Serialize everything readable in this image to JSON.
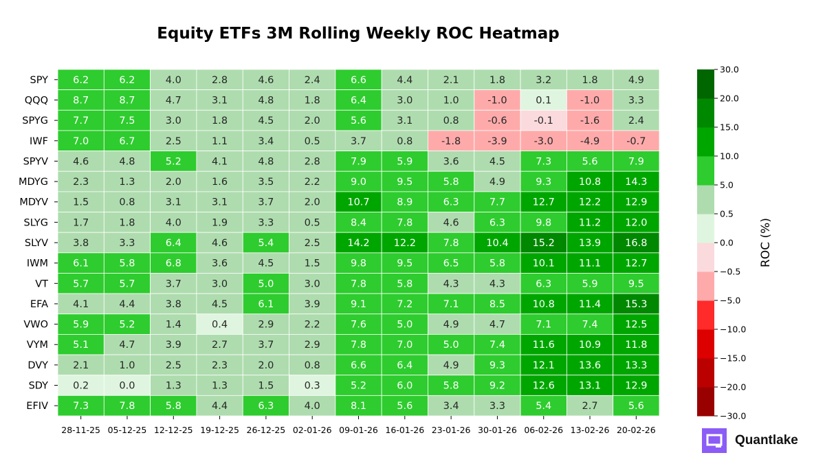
{
  "chart_data": {
    "type": "heatmap",
    "title": "Equity ETFs 3M Rolling Weekly ROC Heatmap",
    "rows": [
      "SPY",
      "QQQ",
      "SPYG",
      "IWF",
      "SPYV",
      "MDYG",
      "MDYV",
      "SLYG",
      "SLYV",
      "IWM",
      "VT",
      "EFA",
      "VWO",
      "VYM",
      "DVY",
      "SDY",
      "EFIV"
    ],
    "columns": [
      "28-11-25",
      "05-12-25",
      "12-12-25",
      "19-12-25",
      "26-12-25",
      "02-01-26",
      "09-01-26",
      "16-01-26",
      "23-01-26",
      "30-01-26",
      "06-02-26",
      "13-02-26",
      "20-02-26"
    ],
    "values": [
      [
        6.2,
        6.2,
        4.0,
        2.8,
        4.6,
        2.4,
        6.6,
        4.4,
        2.1,
        1.8,
        3.2,
        1.8,
        4.9
      ],
      [
        8.7,
        8.7,
        4.7,
        3.1,
        4.8,
        1.8,
        6.4,
        3.0,
        1.0,
        -1.0,
        0.1,
        -1.0,
        3.3
      ],
      [
        7.7,
        7.5,
        3.0,
        1.8,
        4.5,
        2.0,
        5.6,
        3.1,
        0.8,
        -0.6,
        -0.1,
        -1.6,
        2.4
      ],
      [
        7.0,
        6.7,
        2.5,
        1.1,
        3.4,
        0.5,
        3.7,
        0.8,
        -1.8,
        -3.9,
        -3.0,
        -4.9,
        -0.7
      ],
      [
        4.6,
        4.8,
        5.2,
        4.1,
        4.8,
        2.8,
        7.9,
        5.9,
        3.6,
        4.5,
        7.3,
        5.6,
        7.9
      ],
      [
        2.3,
        1.3,
        2.0,
        1.6,
        3.5,
        2.2,
        9.0,
        9.5,
        5.8,
        4.9,
        9.3,
        10.8,
        14.3
      ],
      [
        1.5,
        0.8,
        3.1,
        3.1,
        3.7,
        2.0,
        10.7,
        8.9,
        6.3,
        7.7,
        12.7,
        12.2,
        12.9
      ],
      [
        1.7,
        1.8,
        4.0,
        1.9,
        3.3,
        0.5,
        8.4,
        7.8,
        4.6,
        6.3,
        9.8,
        11.2,
        12.0
      ],
      [
        3.8,
        3.3,
        6.4,
        4.6,
        5.4,
        2.5,
        14.2,
        12.2,
        7.8,
        10.4,
        15.2,
        13.9,
        16.8
      ],
      [
        6.1,
        5.8,
        6.8,
        3.6,
        4.5,
        1.5,
        9.8,
        9.5,
        6.5,
        5.8,
        10.1,
        11.1,
        12.7
      ],
      [
        5.7,
        5.7,
        3.7,
        3.0,
        5.0,
        3.0,
        7.8,
        5.8,
        4.3,
        4.3,
        6.3,
        5.9,
        9.5
      ],
      [
        4.1,
        4.4,
        3.8,
        4.5,
        6.1,
        3.9,
        9.1,
        7.2,
        7.1,
        8.5,
        10.8,
        11.4,
        15.3
      ],
      [
        5.9,
        5.2,
        1.4,
        0.4,
        2.9,
        2.2,
        7.6,
        5.0,
        4.9,
        4.7,
        7.1,
        7.4,
        12.5
      ],
      [
        5.1,
        4.7,
        3.9,
        2.7,
        3.7,
        2.9,
        7.8,
        7.0,
        5.0,
        7.4,
        11.6,
        10.9,
        11.8
      ],
      [
        2.1,
        1.0,
        2.5,
        2.3,
        2.0,
        0.8,
        6.6,
        6.4,
        4.9,
        9.3,
        12.1,
        13.6,
        13.3
      ],
      [
        0.2,
        0.0,
        1.3,
        1.3,
        1.5,
        0.3,
        5.2,
        6.0,
        5.8,
        9.2,
        12.6,
        13.1,
        12.9
      ],
      [
        7.3,
        7.8,
        5.8,
        4.4,
        6.3,
        4.0,
        8.1,
        5.6,
        3.4,
        3.3,
        5.4,
        2.7,
        5.6
      ]
    ],
    "colorbar": {
      "label": "ROC (%)",
      "boundaries": [
        -30,
        -20,
        -15,
        -10,
        -5,
        -0.5,
        0,
        0.5,
        5,
        10,
        15,
        20,
        30
      ],
      "tick_labels": [
        "−30.0",
        "−20.0",
        "−15.0",
        "−10.0",
        "−5.0",
        "−0.5",
        "0.0",
        "0.5",
        "5.0",
        "10.0",
        "15.0",
        "20.0",
        "30.0"
      ],
      "colors": [
        "#990000",
        "#bb0000",
        "#dd0000",
        "#ff2a2a",
        "#ffaaaa",
        "#fadadd",
        "#dff5df",
        "#aedcae",
        "#2ecc2e",
        "#00a600",
        "#008800",
        "#006600"
      ]
    }
  },
  "branding": {
    "name": "Quantlake",
    "logo_color": "#8b5cf6"
  }
}
